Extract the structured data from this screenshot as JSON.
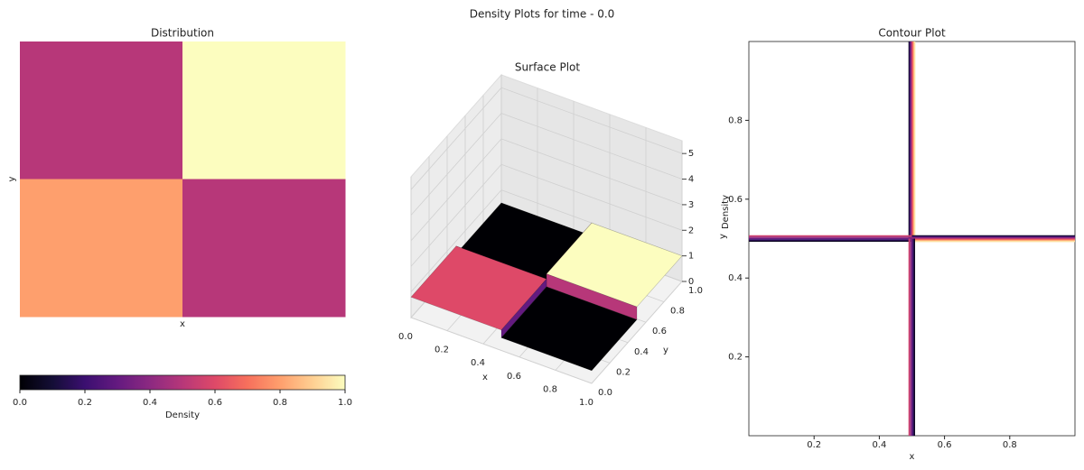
{
  "title": "Density Plots for time - 0.0",
  "chart_data": [
    {
      "type": "heatmap",
      "title": "Distribution",
      "xlabel": "x",
      "ylabel": "y",
      "z": [
        [
          0.5,
          1.0
        ],
        [
          0.8,
          0.5
        ]
      ],
      "colormap": "magma",
      "colorbar": {
        "label": "Density",
        "lim": [
          0,
          1
        ],
        "ticks": [
          {
            "value": 0,
            "label": "0.0"
          },
          0.2,
          0.4,
          0.6,
          0.8,
          {
            "value": 1,
            "label": "1.0"
          }
        ]
      }
    },
    {
      "type": "surface",
      "title": "Surface Plot",
      "xlabel": "x",
      "ylabel": "y",
      "zlabel": "Density",
      "z": [
        [
          0.5,
          1.0
        ],
        [
          0.8,
          0.5
        ]
      ],
      "colormap": "magma",
      "xlim": [
        0,
        1
      ],
      "ylim": [
        0,
        1
      ],
      "zlim": [
        0,
        5.5
      ],
      "xticks": [
        {
          "value": 0,
          "label": "0.0"
        },
        0.2,
        0.4,
        0.6,
        0.8,
        {
          "value": 1,
          "label": "1.0"
        }
      ],
      "yticks": [
        {
          "value": 0,
          "label": "0.0"
        },
        0.2,
        0.4,
        0.6,
        0.8,
        {
          "value": 1,
          "label": "1.0"
        }
      ],
      "zticks": [
        0,
        1,
        2,
        3,
        4,
        5
      ]
    },
    {
      "type": "contour",
      "title": "Contour Plot",
      "xlabel": "x",
      "ylabel": "y",
      "z": [
        [
          0.5,
          1.0
        ],
        [
          0.8,
          0.5
        ]
      ],
      "colormap": "magma",
      "xlim": [
        0,
        1
      ],
      "ylim": [
        0,
        1
      ],
      "xticks": [
        0.2,
        0.4,
        0.6,
        0.8
      ],
      "yticks": [
        0.2,
        0.4,
        0.6,
        0.8
      ]
    }
  ]
}
